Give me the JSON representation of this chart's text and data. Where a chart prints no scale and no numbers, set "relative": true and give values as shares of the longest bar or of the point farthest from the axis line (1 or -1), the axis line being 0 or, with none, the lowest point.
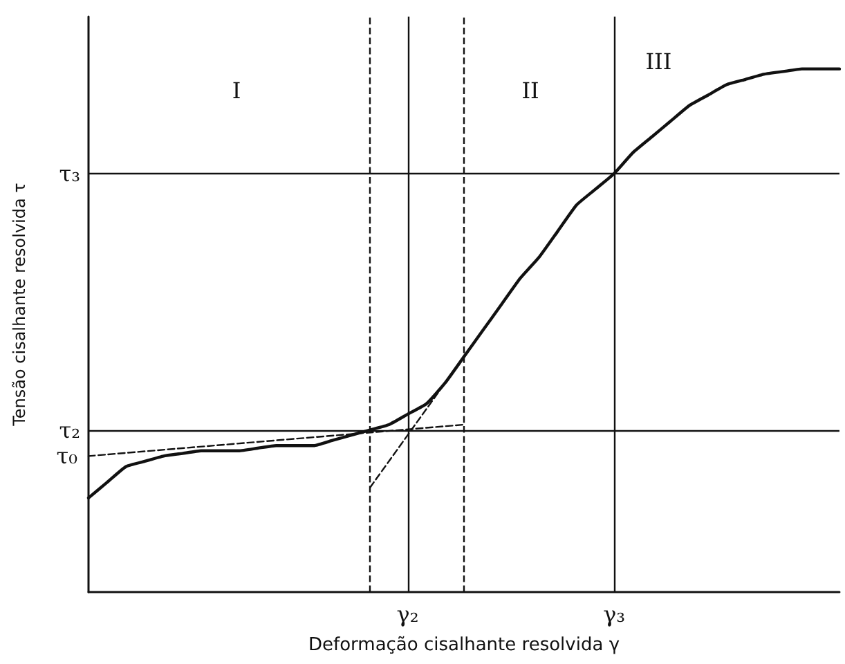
{
  "chart_data": {
    "type": "line",
    "relative": true,
    "xlabel": "Deformação cisalhante resolvida γ",
    "ylabel": "Tensão cisalhante resolvida τ",
    "categories": [
      null,
      null,
      null,
      null,
      null,
      null,
      null,
      null,
      null,
      null,
      null,
      null,
      null,
      null,
      null,
      null,
      null,
      "γ₂",
      null,
      null,
      null,
      null,
      null,
      null,
      null,
      null,
      null,
      null,
      "γ₃",
      null,
      null,
      null,
      null,
      null,
      null,
      null,
      null,
      null,
      null,
      null,
      null
    ],
    "grid": "x",
    "marker": "none",
    "series": [
      {
        "color": "#111111",
        "line_style": "solid",
        "values": [
          0.18,
          0.21,
          0.24,
          0.25,
          0.26,
          0.265,
          0.27,
          0.27,
          0.27,
          0.275,
          0.28,
          0.28,
          0.28,
          0.29,
          0.3,
          0.31,
          0.32,
          0.34,
          0.36,
          0.4,
          0.45,
          0.5,
          0.55,
          0.6,
          0.64,
          0.69,
          0.74,
          0.77,
          0.8,
          0.84,
          0.87,
          0.9,
          0.93,
          0.95,
          0.97,
          0.98,
          0.99,
          0.995,
          1,
          1,
          1
        ]
      },
      {
        "color": "#111111",
        "line_style": "dashed",
        "values": [
          0.26,
          null,
          null,
          null,
          null,
          null,
          null,
          null,
          null,
          null,
          null,
          null,
          null,
          null,
          null,
          null,
          null,
          null,
          null,
          null,
          0.32,
          null,
          null,
          null,
          null,
          null,
          null,
          null,
          null,
          null,
          null,
          null,
          null,
          null,
          null,
          null,
          null,
          null,
          null,
          null,
          null
        ]
      },
      {
        "color": "#111111",
        "line_style": "dashed",
        "values": [
          null,
          null,
          null,
          null,
          null,
          null,
          null,
          null,
          null,
          null,
          null,
          null,
          null,
          null,
          null,
          0.2,
          null,
          null,
          null,
          0.4,
          null,
          null,
          null,
          null,
          null,
          null,
          null,
          null,
          null,
          null,
          null,
          null,
          null,
          null,
          null,
          null,
          null,
          null,
          null,
          null,
          null
        ]
      }
    ],
    "ref_lines": [
      {
        "axis": "y",
        "value": 0.8,
        "label": "τ₃",
        "color": "#111111",
        "line_style": "solid"
      },
      {
        "axis": "y",
        "value": 0.31,
        "label": "τ₂",
        "color": "#111111",
        "line_style": "solid"
      }
    ],
    "annotations": [
      "τ₀",
      "I",
      "II",
      "III"
    ]
  }
}
